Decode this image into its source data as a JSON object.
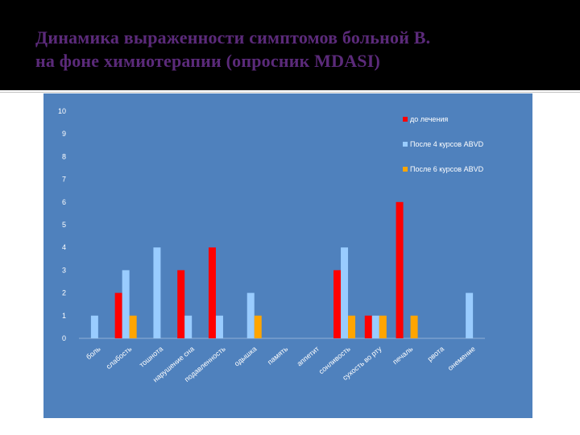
{
  "slide": {
    "title_line1": "Динамика выраженности симптомов больной В.",
    "title_line2": "на фоне химиотерапии (опросник MDASI)"
  },
  "colors": {
    "background": "#ffffff",
    "title_band": "#000000",
    "title_text": "#5b2a7a",
    "plot_background": "#4f81bd",
    "axis_text": "#ffffff"
  },
  "chart_data": {
    "type": "bar",
    "title": "",
    "xlabel": "",
    "ylabel": "",
    "ylim": [
      0,
      10
    ],
    "yticks": [
      0,
      1,
      2,
      3,
      4,
      5,
      6,
      7,
      8,
      9,
      10
    ],
    "grid": false,
    "legend_position": "top-right",
    "categories": [
      "боль",
      "слабость",
      "тошнота",
      "нарушение сна",
      "подавленность",
      "одышка",
      "память",
      "аппетит",
      "сонливость",
      "сухость во рту",
      "печаль",
      "рвота",
      "онемение"
    ],
    "series": [
      {
        "name": "до лечения",
        "color": "#ff0000",
        "values": [
          0,
          2,
          0,
          3,
          4,
          0,
          0,
          0,
          3,
          1,
          6,
          0,
          0
        ]
      },
      {
        "name": "После 4 курсов ABVD",
        "color": "#99ccff",
        "values": [
          1,
          3,
          4,
          1,
          1,
          2,
          0,
          0,
          4,
          1,
          0,
          0,
          2
        ]
      },
      {
        "name": "После 6 курсов ABVD",
        "color": "#ffa500",
        "values": [
          0,
          1,
          0,
          0,
          0,
          1,
          0,
          0,
          1,
          1,
          1,
          0,
          0
        ]
      }
    ]
  }
}
